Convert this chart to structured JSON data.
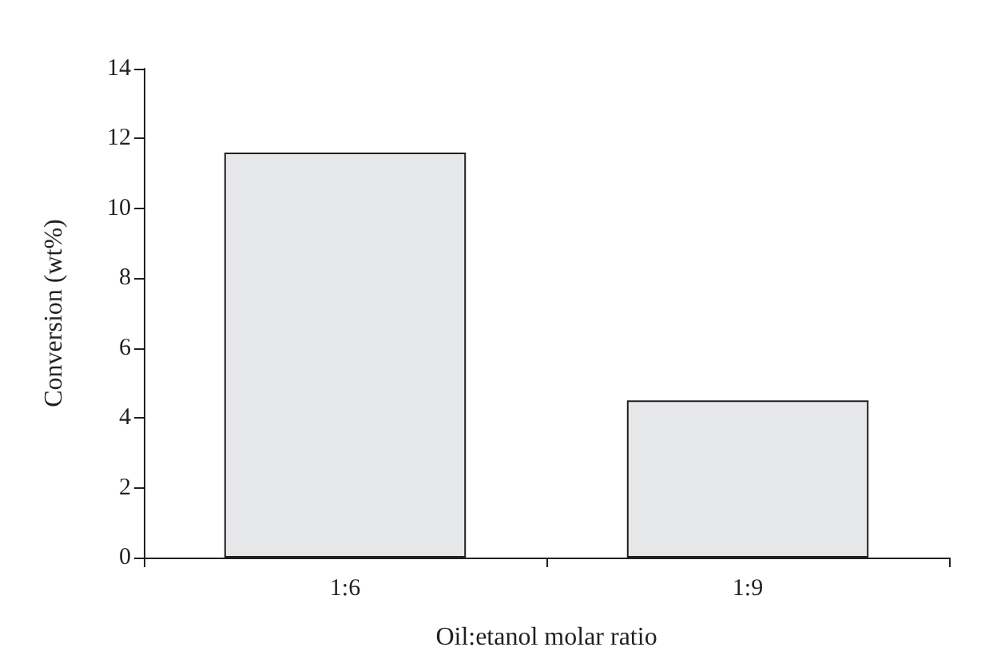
{
  "chart_data": {
    "type": "bar",
    "xlabel": "Oil:etanol molar ratio",
    "ylabel": "Conversion (wt%)",
    "categories": [
      "1:6",
      "1:9"
    ],
    "values": [
      11.6,
      4.5
    ],
    "color": "#e6e7e8",
    "ylim": [
      0,
      14
    ],
    "yticks": [
      0,
      2,
      4,
      6,
      8,
      10,
      12,
      14
    ]
  }
}
